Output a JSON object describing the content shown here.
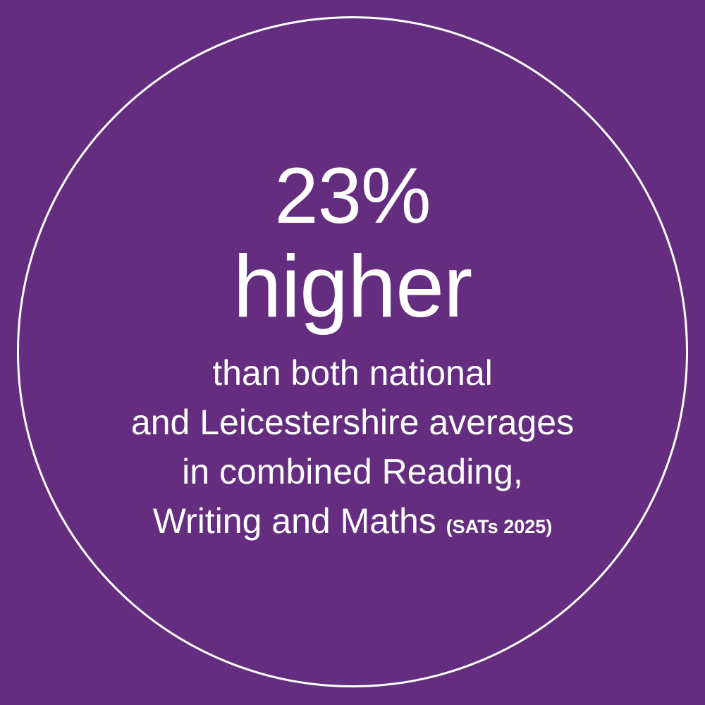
{
  "colors": {
    "background": "#652d80",
    "foreground": "#ffffff"
  },
  "headline": {
    "value": "23%",
    "label": "higher"
  },
  "description": {
    "lines": [
      "than both national",
      "and Leicestershire averages",
      "in combined Reading,",
      "Writing and Maths"
    ],
    "note": "(SATs 2025)"
  }
}
